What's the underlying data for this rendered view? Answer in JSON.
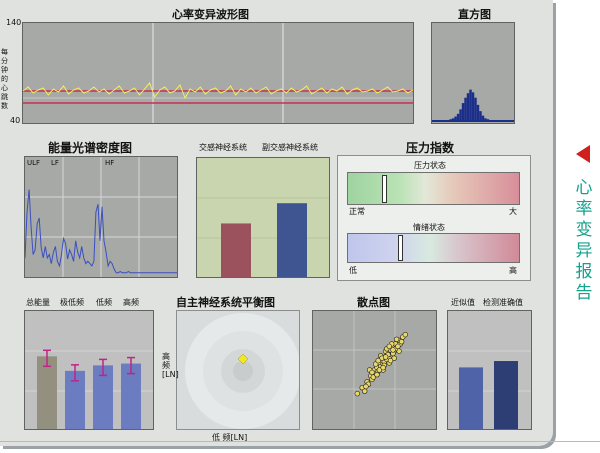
{
  "hrv_waveform": {
    "title": "心率变异波形图",
    "ylabel": "每分钟的心跳数",
    "y_max": "140",
    "y_min": "40"
  },
  "histogram": {
    "title": "直方图"
  },
  "psd": {
    "title": "能量光谱密度图",
    "band_labels": [
      "ULF",
      "LF",
      "HF"
    ]
  },
  "autonomic_bars": {
    "labels": [
      "交感神经系统",
      "副交感神经系统"
    ],
    "values": [
      0.45,
      0.62
    ],
    "colors": [
      "#9b525c",
      "#3e5592"
    ]
  },
  "stress_index": {
    "title": "压力指数",
    "pressure": {
      "label": "压力状态",
      "left": "正常",
      "right": "大",
      "level": 0.2
    },
    "emotion": {
      "label": "情绪状态",
      "left": "低",
      "right": "高",
      "level": 0.29
    }
  },
  "energy_bars": {
    "labels": [
      "总能量",
      "极低频",
      "低频",
      "高频"
    ],
    "values": [
      0.8,
      0.64,
      0.7,
      0.72
    ],
    "colors": [
      "#949080",
      "#6b7cc0",
      "#6b7cc0",
      "#6b7cc0"
    ]
  },
  "ans_balance": {
    "title": "自主神经系统平衡图",
    "xlabel": "低  频[LN]",
    "ylabel": "高  频[LN]"
  },
  "scatter": {
    "title": "散点图"
  },
  "approx": {
    "labels": [
      "近似值",
      "检测准确值"
    ],
    "values": [
      0.58,
      0.64
    ],
    "colors": [
      "#4e63a8",
      "#2c3e74"
    ]
  },
  "side_title": "心率变异报告",
  "chart_data": [
    {
      "type": "line",
      "title": "心率变异波形图",
      "ylabel": "每分钟的心跳数",
      "ylim": [
        40,
        140
      ],
      "x": [
        0,
        5,
        10,
        15,
        20,
        25,
        30,
        35,
        40,
        45,
        50,
        55,
        60,
        65,
        70,
        75,
        80,
        85,
        90,
        95,
        100,
        105,
        110,
        115,
        120,
        125,
        130,
        135,
        140,
        145,
        150,
        155,
        160,
        165,
        170,
        175,
        180,
        185,
        190,
        195,
        200,
        205,
        210,
        215,
        220,
        225,
        230,
        235,
        240,
        245,
        250,
        255,
        260,
        265,
        270,
        275,
        280,
        285,
        290,
        295,
        300,
        305,
        310,
        315,
        320,
        325,
        330,
        335,
        340,
        345,
        350,
        355,
        360,
        365,
        370,
        375,
        380,
        385
      ],
      "y": [
        72,
        76,
        70,
        73,
        75,
        68,
        74,
        71,
        77,
        69,
        73,
        75,
        70,
        72,
        76,
        71,
        74,
        69,
        73,
        77,
        70,
        72,
        75,
        68,
        74,
        80,
        66,
        73,
        76,
        70,
        72,
        78,
        65,
        74,
        71,
        76,
        69,
        73,
        75,
        70,
        72,
        77,
        68,
        74,
        71,
        75,
        70,
        73,
        76,
        69,
        72,
        74,
        70,
        75,
        71,
        73,
        77,
        69,
        72,
        75,
        70,
        74,
        72,
        76,
        69,
        73,
        75,
        71,
        72,
        74,
        70,
        73,
        76,
        71,
        72,
        74,
        70,
        73
      ]
    },
    {
      "type": "bar",
      "title": "直方图",
      "values": [
        0,
        0,
        0,
        0,
        0,
        0,
        1,
        2,
        3,
        5,
        8,
        13,
        20,
        26,
        31,
        35,
        32,
        26,
        18,
        11,
        6,
        3,
        2,
        1,
        0,
        0,
        0,
        0,
        0,
        0,
        0,
        0,
        0
      ]
    },
    {
      "type": "line",
      "title": "能量光谱密度图",
      "x": [
        0,
        2,
        4,
        6,
        8,
        10,
        12,
        14,
        16,
        18,
        20,
        22,
        24,
        26,
        28,
        30,
        32,
        34,
        36,
        38,
        40,
        42,
        44,
        46,
        48,
        50,
        52,
        54,
        56,
        58,
        60,
        62,
        64,
        66,
        68,
        70,
        72,
        74,
        76,
        78,
        80,
        82,
        84,
        86,
        88,
        90,
        92,
        94,
        96,
        98,
        100,
        102,
        104,
        106,
        108,
        110,
        112,
        114,
        116,
        118,
        120,
        122,
        124,
        126,
        128,
        130,
        132,
        134,
        136,
        138,
        140,
        142,
        144,
        146,
        148,
        150
      ],
      "y": [
        0.15,
        0.55,
        0.75,
        0.42,
        0.18,
        0.22,
        0.45,
        0.5,
        0.24,
        0.15,
        0.25,
        0.15,
        0.18,
        0.1,
        0.2,
        0.25,
        0.12,
        0.08,
        0.18,
        0.32,
        0.28,
        0.14,
        0.22,
        0.18,
        0.12,
        0.3,
        0.2,
        0.15,
        0.25,
        0.15,
        0.1,
        0.12,
        0.1,
        0.08,
        0.12,
        0.55,
        0.62,
        0.3,
        0.6,
        0.3,
        0.2,
        0.08,
        0.12,
        0.1,
        0.05,
        0.02,
        0.02,
        0.03,
        0.02,
        0.02,
        0.02,
        0.03,
        0.02,
        0.02,
        0.02,
        0.02,
        0.02,
        0.02,
        0.02,
        0.02,
        0.02,
        0.02,
        0.02,
        0.02,
        0.02,
        0.02,
        0.02,
        0.02,
        0.02,
        0.02,
        0.02,
        0.02,
        0.02,
        0.02,
        0.02,
        0.02
      ]
    },
    {
      "type": "scatter",
      "title": "散点图",
      "points": [
        [
          0.36,
          0.3
        ],
        [
          0.4,
          0.35
        ],
        [
          0.42,
          0.32
        ],
        [
          0.44,
          0.4
        ],
        [
          0.45,
          0.38
        ],
        [
          0.47,
          0.45
        ],
        [
          0.48,
          0.42
        ],
        [
          0.5,
          0.5
        ],
        [
          0.5,
          0.47
        ],
        [
          0.52,
          0.52
        ],
        [
          0.53,
          0.49
        ],
        [
          0.54,
          0.56
        ],
        [
          0.55,
          0.53
        ],
        [
          0.56,
          0.58
        ],
        [
          0.57,
          0.55
        ],
        [
          0.58,
          0.6
        ],
        [
          0.58,
          0.57
        ],
        [
          0.6,
          0.62
        ],
        [
          0.6,
          0.59
        ],
        [
          0.61,
          0.65
        ],
        [
          0.62,
          0.61
        ],
        [
          0.63,
          0.67
        ],
        [
          0.64,
          0.63
        ],
        [
          0.65,
          0.7
        ],
        [
          0.66,
          0.66
        ],
        [
          0.67,
          0.72
        ],
        [
          0.68,
          0.69
        ],
        [
          0.7,
          0.75
        ],
        [
          0.71,
          0.72
        ],
        [
          0.73,
          0.78
        ],
        [
          0.75,
          0.8
        ],
        [
          0.46,
          0.5
        ],
        [
          0.49,
          0.44
        ],
        [
          0.52,
          0.46
        ],
        [
          0.55,
          0.62
        ],
        [
          0.57,
          0.5
        ],
        [
          0.59,
          0.66
        ],
        [
          0.62,
          0.56
        ],
        [
          0.64,
          0.72
        ],
        [
          0.66,
          0.6
        ],
        [
          0.68,
          0.76
        ],
        [
          0.7,
          0.66
        ],
        [
          0.43,
          0.36
        ],
        [
          0.51,
          0.55
        ],
        [
          0.54,
          0.5
        ],
        [
          0.58,
          0.54
        ],
        [
          0.6,
          0.68
        ],
        [
          0.63,
          0.58
        ],
        [
          0.65,
          0.64
        ],
        [
          0.67,
          0.68
        ],
        [
          0.69,
          0.7
        ],
        [
          0.72,
          0.74
        ],
        [
          0.56,
          0.6
        ],
        [
          0.61,
          0.63
        ],
        [
          0.53,
          0.58
        ],
        [
          0.48,
          0.48
        ],
        [
          0.59,
          0.61
        ],
        [
          0.62,
          0.7
        ],
        [
          0.57,
          0.52
        ],
        [
          0.65,
          0.67
        ]
      ]
    }
  ]
}
